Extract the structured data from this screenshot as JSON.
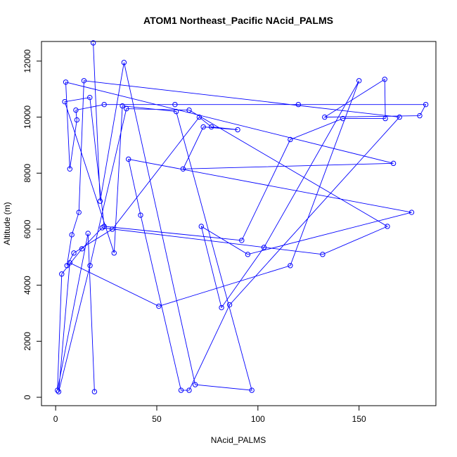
{
  "chart_data": {
    "type": "line",
    "title": "ATOM1 Northeast_Pacific NAcid_PALMS",
    "xlabel": "NAcid_PALMS",
    "ylabel": "Altitude (m)",
    "xlim": [
      -7,
      188
    ],
    "ylim": [
      -300,
      12700
    ],
    "xticks": [
      0,
      50,
      100,
      150
    ],
    "yticks": [
      0,
      2000,
      4000,
      6000,
      8000,
      10000,
      12000
    ],
    "grid": false,
    "series_color": "#0000ff",
    "series": [
      {
        "marker": "open-circle",
        "x": [
          18.6,
          22,
          33.8,
          69,
          97,
          59.6,
          33,
          28.9,
          4.5,
          16.9,
          24,
          92,
          116,
          142,
          163,
          162.7,
          133,
          180,
          183,
          120,
          59,
          24,
          10,
          10.5,
          7,
          5,
          167,
          63,
          73,
          90,
          77,
          71,
          28,
          9,
          5.6,
          8,
          11.5,
          14,
          170,
          86,
          66,
          62,
          42,
          36,
          176,
          95,
          72,
          82,
          103,
          150,
          116,
          51,
          7,
          1.5,
          17,
          35,
          66,
          164,
          132,
          23,
          13,
          3,
          0.9,
          16,
          19.2
        ],
        "y": [
          12650,
          7000,
          11950,
          450,
          250,
          10200,
          10400,
          5150,
          10550,
          10700,
          6100,
          5600,
          9200,
          9950,
          9950,
          11350,
          10000,
          10050,
          10450,
          10450,
          10450,
          10450,
          10250,
          9900,
          8150,
          11250,
          8350,
          8150,
          9650,
          9550,
          9650,
          10000,
          6000,
          5150,
          4700,
          5800,
          6600,
          11300,
          10000,
          3300,
          250,
          250,
          6500,
          8500,
          6600,
          5100,
          6100,
          3200,
          5350,
          11300,
          4700,
          3250,
          4800,
          200,
          4700,
          10300,
          10250,
          6100,
          5100,
          6050,
          5300,
          4400,
          250,
          5850,
          200
        ]
      }
    ]
  }
}
